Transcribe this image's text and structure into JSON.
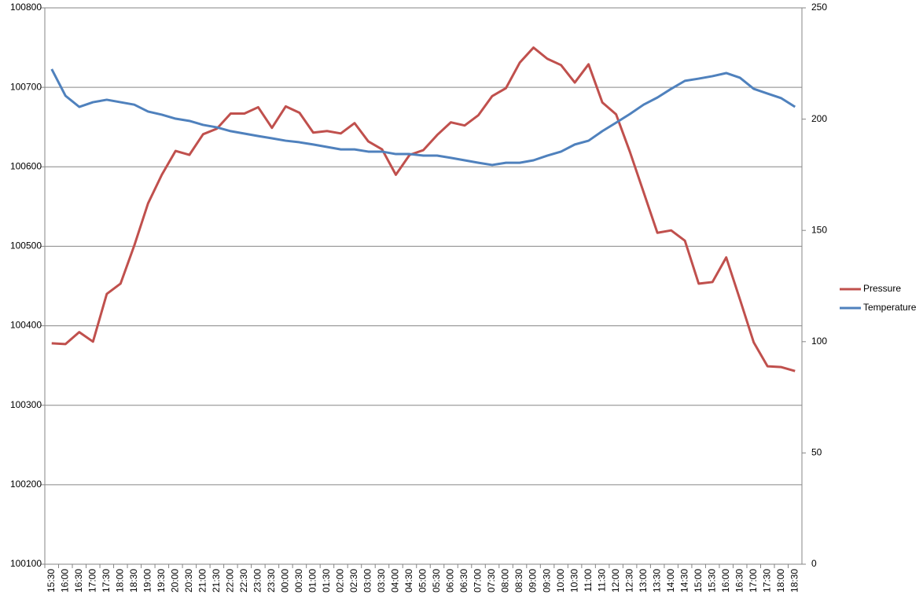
{
  "chart_data": {
    "type": "line",
    "categories": [
      "15:30",
      "16:00",
      "16:30",
      "17:00",
      "17:30",
      "18:00",
      "18:30",
      "19:00",
      "19:30",
      "20:00",
      "20:30",
      "21:00",
      "21:30",
      "22:00",
      "22:30",
      "23:00",
      "23:30",
      "00:00",
      "00:30",
      "01:00",
      "01:30",
      "02:00",
      "02:30",
      "03:00",
      "03:30",
      "04:00",
      "04:30",
      "05:00",
      "05:30",
      "06:00",
      "06:30",
      "07:00",
      "07:30",
      "08:00",
      "08:30",
      "09:00",
      "09:30",
      "10:00",
      "10:30",
      "11:00",
      "11:30",
      "12:00",
      "12:30",
      "13:00",
      "13:30",
      "14:00",
      "14:30",
      "15:00",
      "15:30",
      "16:00",
      "16:30",
      "17:00",
      "17:30",
      "18:00",
      "18:30"
    ],
    "series": [
      {
        "name": "Pressure",
        "color": "#c0504d",
        "values": [
          100378,
          100377,
          100392,
          100380,
          100440,
          100453,
          100501,
          100554,
          100590,
          100620,
          100615,
          100641,
          100648,
          100667,
          100667,
          100675,
          100649,
          100676,
          100668,
          100643,
          100645,
          100642,
          100655,
          100632,
          100622,
          100590,
          100615,
          100621,
          100640,
          100656,
          100652,
          100665,
          100689,
          100699,
          100731,
          100750,
          100736,
          100728,
          100706,
          100729,
          100681,
          100666,
          100619,
          100568,
          100517,
          100520,
          100507,
          100453,
          100455,
          100486,
          100433,
          100379,
          100349,
          100348,
          100343
        ]
      },
      {
        "name": "Temperature",
        "color": "#4f81bd",
        "axis": "y2",
        "values": [
          222.5,
          210.5,
          205.5,
          207.6,
          208.7,
          207.6,
          206.5,
          203.4,
          202,
          200.2,
          199.2,
          197.4,
          196.3,
          194.6,
          193.5,
          192.4,
          191.4,
          190.3,
          189.6,
          188.6,
          187.5,
          186.4,
          186.4,
          185.4,
          185.4,
          184.3,
          184.3,
          183.6,
          183.6,
          182.6,
          181.5,
          180.4,
          179.4,
          180.4,
          180.4,
          181.5,
          183.6,
          185.4,
          188.6,
          190.3,
          194.6,
          198.4,
          202.3,
          206.5,
          209.7,
          213.6,
          217.2,
          218.2,
          219.3,
          220.7,
          218.6,
          213.6,
          211.5,
          209.4,
          205.5
        ]
      }
    ],
    "ylim": [
      100100,
      100800
    ],
    "yticks": [
      100100,
      100200,
      100300,
      100400,
      100500,
      100600,
      100700,
      100800
    ],
    "y2lim": [
      0,
      250
    ],
    "y2ticks": [
      0,
      50,
      100,
      150,
      200,
      250
    ],
    "grid": true,
    "legend": "right"
  }
}
